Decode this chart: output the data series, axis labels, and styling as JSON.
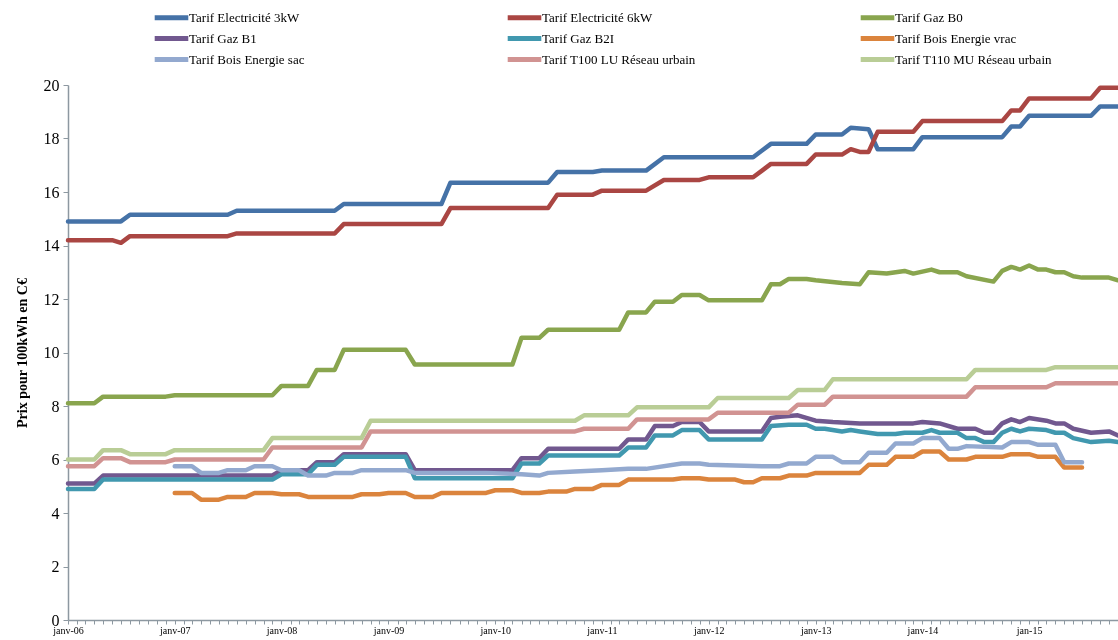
{
  "chart_data": {
    "type": "line",
    "ylabel": "Prix pour 100kWh en C€",
    "xlim": [
      "2006-01",
      "2015-11"
    ],
    "xticks": [
      {
        "value": "2006-01",
        "label": "janv-06"
      },
      {
        "value": "2006-02",
        "label": null
      },
      {
        "value": "2006-03",
        "label": null
      },
      {
        "value": "2006-04",
        "label": null
      },
      {
        "value": "2006-05",
        "label": null
      },
      {
        "value": "2006-06",
        "label": null
      },
      {
        "value": "2006-07",
        "label": null
      },
      {
        "value": "2006-08",
        "label": null
      },
      {
        "value": "2006-09",
        "label": null
      },
      {
        "value": "2006-10",
        "label": null
      },
      {
        "value": "2006-11",
        "label": null
      },
      {
        "value": "2006-12",
        "label": null
      },
      {
        "value": "2007-01",
        "label": "janv-07"
      },
      {
        "value": "2007-02",
        "label": null
      },
      {
        "value": "2007-03",
        "label": null
      },
      {
        "value": "2007-04",
        "label": null
      },
      {
        "value": "2007-05",
        "label": null
      },
      {
        "value": "2007-06",
        "label": null
      },
      {
        "value": "2007-07",
        "label": null
      },
      {
        "value": "2007-08",
        "label": null
      },
      {
        "value": "2007-09",
        "label": null
      },
      {
        "value": "2007-10",
        "label": null
      },
      {
        "value": "2007-11",
        "label": null
      },
      {
        "value": "2007-12",
        "label": null
      },
      {
        "value": "2008-01",
        "label": "janv-08"
      },
      {
        "value": "2008-02",
        "label": null
      },
      {
        "value": "2008-03",
        "label": null
      },
      {
        "value": "2008-04",
        "label": null
      },
      {
        "value": "2008-05",
        "label": null
      },
      {
        "value": "2008-06",
        "label": null
      },
      {
        "value": "2008-07",
        "label": null
      },
      {
        "value": "2008-08",
        "label": null
      },
      {
        "value": "2008-09",
        "label": null
      },
      {
        "value": "2008-10",
        "label": null
      },
      {
        "value": "2008-11",
        "label": null
      },
      {
        "value": "2008-12",
        "label": null
      },
      {
        "value": "2009-01",
        "label": "janv-09"
      },
      {
        "value": "2009-02",
        "label": null
      },
      {
        "value": "2009-03",
        "label": null
      },
      {
        "value": "2009-04",
        "label": null
      },
      {
        "value": "2009-05",
        "label": null
      },
      {
        "value": "2009-06",
        "label": null
      },
      {
        "value": "2009-07",
        "label": null
      },
      {
        "value": "2009-08",
        "label": null
      },
      {
        "value": "2009-09",
        "label": null
      },
      {
        "value": "2009-10",
        "label": null
      },
      {
        "value": "2009-11",
        "label": null
      },
      {
        "value": "2009-12",
        "label": null
      },
      {
        "value": "2010-01",
        "label": "janv-10"
      },
      {
        "value": "2010-02",
        "label": null
      },
      {
        "value": "2010-03",
        "label": null
      },
      {
        "value": "2010-04",
        "label": null
      },
      {
        "value": "2010-05",
        "label": null
      },
      {
        "value": "2010-06",
        "label": null
      },
      {
        "value": "2010-07",
        "label": null
      },
      {
        "value": "2010-08",
        "label": null
      },
      {
        "value": "2010-09",
        "label": null
      },
      {
        "value": "2010-10",
        "label": null
      },
      {
        "value": "2010-11",
        "label": null
      },
      {
        "value": "2010-12",
        "label": null
      },
      {
        "value": "2011-01",
        "label": "janv-11"
      },
      {
        "value": "2011-02",
        "label": null
      },
      {
        "value": "2011-03",
        "label": null
      },
      {
        "value": "2011-04",
        "label": null
      },
      {
        "value": "2011-05",
        "label": null
      },
      {
        "value": "2011-06",
        "label": null
      },
      {
        "value": "2011-07",
        "label": null
      },
      {
        "value": "2011-08",
        "label": null
      },
      {
        "value": "2011-09",
        "label": null
      },
      {
        "value": "2011-10",
        "label": null
      },
      {
        "value": "2011-11",
        "label": null
      },
      {
        "value": "2011-12",
        "label": null
      },
      {
        "value": "2012-01",
        "label": "janv-12"
      },
      {
        "value": "2012-02",
        "label": null
      },
      {
        "value": "2012-03",
        "label": null
      },
      {
        "value": "2012-04",
        "label": null
      },
      {
        "value": "2012-05",
        "label": null
      },
      {
        "value": "2012-06",
        "label": null
      },
      {
        "value": "2012-07",
        "label": null
      },
      {
        "value": "2012-08",
        "label": null
      },
      {
        "value": "2012-09",
        "label": null
      },
      {
        "value": "2012-10",
        "label": null
      },
      {
        "value": "2012-11",
        "label": null
      },
      {
        "value": "2012-12",
        "label": null
      },
      {
        "value": "2013-01",
        "label": "janv-13"
      },
      {
        "value": "2013-02",
        "label": null
      },
      {
        "value": "2013-03",
        "label": null
      },
      {
        "value": "2013-04",
        "label": null
      },
      {
        "value": "2013-05",
        "label": null
      },
      {
        "value": "2013-06",
        "label": null
      },
      {
        "value": "2013-07",
        "label": null
      },
      {
        "value": "2013-08",
        "label": null
      },
      {
        "value": "2013-09",
        "label": null
      },
      {
        "value": "2013-10",
        "label": null
      },
      {
        "value": "2013-11",
        "label": null
      },
      {
        "value": "2013-12",
        "label": null
      },
      {
        "value": "2014-01",
        "label": "janv-14"
      },
      {
        "value": "2014-02",
        "label": null
      },
      {
        "value": "2014-03",
        "label": null
      },
      {
        "value": "2014-04",
        "label": null
      },
      {
        "value": "2014-05",
        "label": null
      },
      {
        "value": "2014-06",
        "label": null
      },
      {
        "value": "2014-07",
        "label": null
      },
      {
        "value": "2014-08",
        "label": null
      },
      {
        "value": "2014-09",
        "label": null
      },
      {
        "value": "2014-10",
        "label": null
      },
      {
        "value": "2014-11",
        "label": null
      },
      {
        "value": "2014-12",
        "label": null
      },
      {
        "value": "2015-01",
        "label": "jan-15"
      },
      {
        "value": "2015-02",
        "label": null
      },
      {
        "value": "2015-03",
        "label": null
      },
      {
        "value": "2015-04",
        "label": null
      },
      {
        "value": "2015-05",
        "label": null
      },
      {
        "value": "2015-06",
        "label": null
      },
      {
        "value": "2015-07",
        "label": null
      },
      {
        "value": "2015-08",
        "label": null
      },
      {
        "value": "2015-09",
        "label": null
      },
      {
        "value": "2015-10",
        "label": null
      },
      {
        "value": "2015-11",
        "label": null
      }
    ],
    "ylim": [
      0,
      20
    ],
    "yticks": [
      0,
      2,
      4,
      6,
      8,
      10,
      12,
      14,
      16,
      18,
      20
    ],
    "grid": false,
    "legend": "top",
    "series": [
      {
        "name": "Tarif Electricité 3kW",
        "color": "#4572a7",
        "x": [
          "2006-01",
          "2006-07",
          "2006-08",
          "2007-07",
          "2007-08",
          "2008-07",
          "2008-08",
          "2009-07",
          "2009-08",
          "2010-07",
          "2010-08",
          "2010-12",
          "2011-01",
          "2011-06",
          "2011-08",
          "2012-06",
          "2012-08",
          "2012-12",
          "2013-01",
          "2013-04",
          "2013-05",
          "2013-07",
          "2013-08",
          "2013-12",
          "2014-01",
          "2014-10",
          "2014-11",
          "2014-12",
          "2015-01",
          "2015-08",
          "2015-09",
          "2015-11"
        ],
        "values": [
          14.9,
          14.9,
          15.15,
          15.15,
          15.3,
          15.3,
          15.55,
          15.55,
          16.35,
          16.35,
          16.75,
          16.75,
          16.8,
          16.8,
          17.3,
          17.3,
          17.8,
          17.8,
          18.15,
          18.15,
          18.4,
          18.35,
          17.6,
          17.6,
          18.05,
          18.05,
          18.45,
          18.45,
          18.85,
          18.85,
          19.2,
          19.2
        ]
      },
      {
        "name": "Tarif Electricité 6kW",
        "color": "#aa4643",
        "x": [
          "2006-01",
          "2006-06",
          "2006-07",
          "2006-08",
          "2007-07",
          "2007-08",
          "2008-07",
          "2008-08",
          "2009-07",
          "2009-08",
          "2010-07",
          "2010-08",
          "2010-12",
          "2011-01",
          "2011-06",
          "2011-08",
          "2011-12",
          "2012-01",
          "2012-06",
          "2012-08",
          "2012-12",
          "2013-01",
          "2013-04",
          "2013-05",
          "2013-06",
          "2013-07",
          "2013-08",
          "2013-12",
          "2014-01",
          "2014-10",
          "2014-11",
          "2014-12",
          "2015-01",
          "2015-08",
          "2015-09",
          "2015-11"
        ],
        "values": [
          14.2,
          14.2,
          14.1,
          14.35,
          14.35,
          14.45,
          14.45,
          14.8,
          14.8,
          15.4,
          15.4,
          15.9,
          15.9,
          16.05,
          16.05,
          16.45,
          16.45,
          16.55,
          16.55,
          17.05,
          17.05,
          17.4,
          17.4,
          17.6,
          17.5,
          17.5,
          18.25,
          18.25,
          18.65,
          18.65,
          19.05,
          19.05,
          19.5,
          19.5,
          19.9,
          19.9
        ]
      },
      {
        "name": "Tarif Gaz B0",
        "color": "#89a54e",
        "x": [
          "2006-01",
          "2006-04",
          "2006-05",
          "2006-12",
          "2007-01",
          "2007-12",
          "2008-01",
          "2008-04",
          "2008-05",
          "2008-07",
          "2008-08",
          "2009-03",
          "2009-04",
          "2010-03",
          "2010-04",
          "2010-06",
          "2010-07",
          "2011-03",
          "2011-04",
          "2011-06",
          "2011-07",
          "2011-09",
          "2011-10",
          "2011-12",
          "2012-01",
          "2012-07",
          "2012-08",
          "2012-09",
          "2012-10",
          "2012-12",
          "2013-01",
          "2013-04",
          "2013-06",
          "2013-07",
          "2013-09",
          "2013-11",
          "2013-12",
          "2014-02",
          "2014-03",
          "2014-05",
          "2014-06",
          "2014-09",
          "2014-10",
          "2014-11",
          "2014-12",
          "2015-01",
          "2015-02",
          "2015-03",
          "2015-04",
          "2015-05",
          "2015-06",
          "2015-07",
          "2015-10",
          "2015-11"
        ],
        "values": [
          8.1,
          8.1,
          8.35,
          8.35,
          8.4,
          8.4,
          8.75,
          8.75,
          9.35,
          9.35,
          10.1,
          10.1,
          9.55,
          9.55,
          10.55,
          10.55,
          10.85,
          10.85,
          11.5,
          11.5,
          11.9,
          11.9,
          12.15,
          12.15,
          11.95,
          11.95,
          12.55,
          12.55,
          12.75,
          12.75,
          12.7,
          12.6,
          12.55,
          13.0,
          12.95,
          13.05,
          12.95,
          13.1,
          13.0,
          13.0,
          12.85,
          12.65,
          13.05,
          13.2,
          13.1,
          13.25,
          13.1,
          13.1,
          13.0,
          13.0,
          12.85,
          12.8,
          12.8,
          12.7
        ]
      },
      {
        "name": "Tarif Gaz B1",
        "color": "#71588f",
        "x": [
          "2006-01",
          "2006-04",
          "2006-05",
          "2007-12",
          "2008-01",
          "2008-04",
          "2008-05",
          "2008-07",
          "2008-08",
          "2009-03",
          "2009-04",
          "2010-03",
          "2010-04",
          "2010-06",
          "2010-07",
          "2011-03",
          "2011-04",
          "2011-06",
          "2011-07",
          "2011-09",
          "2011-10",
          "2011-12",
          "2012-01",
          "2012-07",
          "2012-08",
          "2012-09",
          "2012-11",
          "2013-01",
          "2013-03",
          "2013-06",
          "2013-12",
          "2014-01",
          "2014-03",
          "2014-05",
          "2014-07",
          "2014-08",
          "2014-09",
          "2014-10",
          "2014-11",
          "2014-12",
          "2015-01",
          "2015-03",
          "2015-04",
          "2015-05",
          "2015-06",
          "2015-08",
          "2015-10",
          "2015-11"
        ],
        "values": [
          5.1,
          5.1,
          5.4,
          5.4,
          5.6,
          5.6,
          5.9,
          5.9,
          6.2,
          6.2,
          5.6,
          5.6,
          6.05,
          6.05,
          6.4,
          6.4,
          6.75,
          6.75,
          7.25,
          7.25,
          7.4,
          7.4,
          7.05,
          7.05,
          7.55,
          7.6,
          7.65,
          7.45,
          7.4,
          7.35,
          7.35,
          7.4,
          7.35,
          7.15,
          7.15,
          7.0,
          7.0,
          7.35,
          7.5,
          7.4,
          7.55,
          7.45,
          7.35,
          7.35,
          7.15,
          7.0,
          7.05,
          6.9
        ]
      },
      {
        "name": "Tarif Gaz B2I",
        "color": "#4198af",
        "x": [
          "2006-01",
          "2006-04",
          "2006-05",
          "2007-12",
          "2008-01",
          "2008-04",
          "2008-05",
          "2008-07",
          "2008-08",
          "2009-03",
          "2009-04",
          "2010-03",
          "2010-04",
          "2010-06",
          "2010-07",
          "2011-03",
          "2011-04",
          "2011-06",
          "2011-07",
          "2011-09",
          "2011-10",
          "2011-12",
          "2012-01",
          "2012-07",
          "2012-08",
          "2012-10",
          "2012-12",
          "2013-01",
          "2013-02",
          "2013-04",
          "2013-05",
          "2013-06",
          "2013-08",
          "2013-10",
          "2013-11",
          "2014-01",
          "2014-02",
          "2014-03",
          "2014-05",
          "2014-06",
          "2014-07",
          "2014-08",
          "2014-09",
          "2014-10",
          "2014-11",
          "2014-12",
          "2015-01",
          "2015-03",
          "2015-04",
          "2015-05",
          "2015-06",
          "2015-08",
          "2015-10",
          "2015-11"
        ],
        "values": [
          4.9,
          4.9,
          5.25,
          5.25,
          5.45,
          5.45,
          5.8,
          5.8,
          6.1,
          6.1,
          5.3,
          5.3,
          5.85,
          5.85,
          6.15,
          6.15,
          6.45,
          6.45,
          6.9,
          6.9,
          7.1,
          7.1,
          6.75,
          6.75,
          7.25,
          7.3,
          7.3,
          7.15,
          7.15,
          7.05,
          7.1,
          7.05,
          6.95,
          6.95,
          7.0,
          7.0,
          7.1,
          7.0,
          7.0,
          6.8,
          6.8,
          6.65,
          6.65,
          7.0,
          7.15,
          7.05,
          7.15,
          7.1,
          7.0,
          7.0,
          6.8,
          6.65,
          6.7,
          6.65
        ]
      },
      {
        "name": "Tarif Bois Energie vrac",
        "color": "#db843d",
        "x": [
          "2007-01",
          "2007-03",
          "2007-04",
          "2007-06",
          "2007-07",
          "2007-09",
          "2007-10",
          "2007-12",
          "2008-01",
          "2008-03",
          "2008-04",
          "2008-09",
          "2008-10",
          "2008-12",
          "2009-01",
          "2009-03",
          "2009-04",
          "2009-06",
          "2009-07",
          "2009-12",
          "2010-01",
          "2010-03",
          "2010-04",
          "2010-06",
          "2010-07",
          "2010-09",
          "2010-10",
          "2010-12",
          "2011-01",
          "2011-03",
          "2011-04",
          "2011-09",
          "2011-10",
          "2011-12",
          "2012-01",
          "2012-04",
          "2012-05",
          "2012-06",
          "2012-07",
          "2012-09",
          "2012-10",
          "2012-12",
          "2013-01",
          "2013-06",
          "2013-07",
          "2013-09",
          "2013-10",
          "2013-12",
          "2014-01",
          "2014-03",
          "2014-04",
          "2014-06",
          "2014-07",
          "2014-10",
          "2014-11",
          "2015-01",
          "2015-02",
          "2015-04",
          "2015-05",
          "2015-07"
        ],
        "values": [
          4.75,
          4.75,
          4.5,
          4.5,
          4.6,
          4.6,
          4.75,
          4.75,
          4.7,
          4.7,
          4.6,
          4.6,
          4.7,
          4.7,
          4.75,
          4.75,
          4.6,
          4.6,
          4.75,
          4.75,
          4.85,
          4.85,
          4.75,
          4.75,
          4.8,
          4.8,
          4.9,
          4.9,
          5.05,
          5.05,
          5.25,
          5.25,
          5.3,
          5.3,
          5.25,
          5.25,
          5.15,
          5.15,
          5.3,
          5.3,
          5.4,
          5.4,
          5.5,
          5.5,
          5.8,
          5.8,
          6.1,
          6.1,
          6.3,
          6.3,
          6.0,
          6.0,
          6.1,
          6.1,
          6.2,
          6.2,
          6.1,
          6.1,
          5.7,
          5.7
        ]
      },
      {
        "name": "Tarif Bois Energie sac",
        "color": "#93a9cf",
        "x": [
          "2007-01",
          "2007-03",
          "2007-04",
          "2007-06",
          "2007-07",
          "2007-09",
          "2007-10",
          "2007-12",
          "2008-01",
          "2008-03",
          "2008-04",
          "2008-06",
          "2008-07",
          "2008-09",
          "2008-10",
          "2009-03",
          "2009-04",
          "2009-12",
          "2010-04",
          "2010-06",
          "2010-07",
          "2010-10",
          "2011-01",
          "2011-04",
          "2011-06",
          "2011-10",
          "2011-12",
          "2012-01",
          "2012-07",
          "2012-09",
          "2012-10",
          "2012-12",
          "2013-01",
          "2013-03",
          "2013-04",
          "2013-06",
          "2013-07",
          "2013-09",
          "2013-10",
          "2013-12",
          "2014-01",
          "2014-03",
          "2014-04",
          "2014-05",
          "2014-06",
          "2014-10",
          "2014-11",
          "2015-01",
          "2015-02",
          "2015-04",
          "2015-05",
          "2015-07"
        ],
        "values": [
          5.75,
          5.75,
          5.5,
          5.5,
          5.6,
          5.6,
          5.75,
          5.75,
          5.6,
          5.6,
          5.4,
          5.4,
          5.5,
          5.5,
          5.6,
          5.6,
          5.5,
          5.5,
          5.45,
          5.4,
          5.5,
          5.55,
          5.6,
          5.65,
          5.65,
          5.85,
          5.85,
          5.8,
          5.75,
          5.75,
          5.85,
          5.85,
          6.1,
          6.1,
          5.9,
          5.9,
          6.25,
          6.25,
          6.6,
          6.6,
          6.8,
          6.8,
          6.4,
          6.4,
          6.5,
          6.45,
          6.65,
          6.65,
          6.55,
          6.55,
          5.9,
          5.9
        ]
      },
      {
        "name": "Tarif T100 LU Réseau urbain",
        "color": "#d19392",
        "x": [
          "2006-01",
          "2006-04",
          "2006-05",
          "2006-07",
          "2006-08",
          "2006-12",
          "2007-01",
          "2007-11",
          "2007-12",
          "2008-10",
          "2008-11",
          "2010-10",
          "2010-11",
          "2011-04",
          "2011-05",
          "2012-01",
          "2012-02",
          "2012-10",
          "2012-11",
          "2013-02",
          "2013-03",
          "2014-06",
          "2014-07",
          "2015-03",
          "2015-04",
          "2015-11"
        ],
        "values": [
          5.75,
          5.75,
          6.05,
          6.05,
          5.9,
          5.9,
          6.0,
          6.0,
          6.45,
          6.45,
          7.05,
          7.05,
          7.15,
          7.15,
          7.5,
          7.5,
          7.75,
          7.75,
          8.05,
          8.05,
          8.35,
          8.35,
          8.7,
          8.7,
          8.85,
          8.85
        ]
      },
      {
        "name": "Tarif T110 MU Réseau urbain",
        "color": "#b9cd96",
        "x": [
          "2006-01",
          "2006-04",
          "2006-05",
          "2006-07",
          "2006-08",
          "2006-12",
          "2007-01",
          "2007-11",
          "2007-12",
          "2008-10",
          "2008-11",
          "2010-10",
          "2010-11",
          "2011-04",
          "2011-05",
          "2012-01",
          "2012-02",
          "2012-10",
          "2012-11",
          "2013-02",
          "2013-03",
          "2014-06",
          "2014-07",
          "2015-03",
          "2015-04",
          "2015-11"
        ],
        "values": [
          6.0,
          6.0,
          6.35,
          6.35,
          6.2,
          6.2,
          6.35,
          6.35,
          6.8,
          6.8,
          7.45,
          7.45,
          7.65,
          7.65,
          7.95,
          7.95,
          8.3,
          8.3,
          8.6,
          8.6,
          9.0,
          9.0,
          9.35,
          9.35,
          9.45,
          9.45
        ]
      }
    ]
  }
}
